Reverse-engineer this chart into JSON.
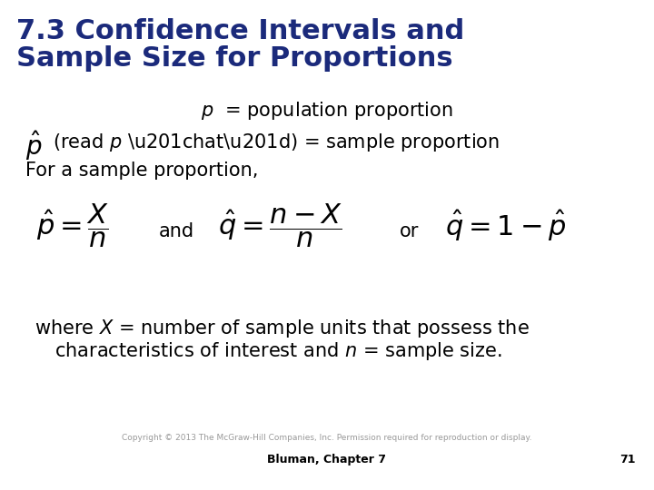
{
  "title_line1": "7.3 Confidence Intervals and",
  "title_line2": "Sample Size for Proportions",
  "title_color": "#1B2A7B",
  "title_fontsize": 22,
  "body_fontsize": 15,
  "formula_fontsize": 22,
  "footer_text": "Bluman, Chapter 7",
  "page_number": "71",
  "copyright_text": "Copyright © 2013 The McGraw-Hill Companies, Inc. Permission required for reproduction or display.",
  "background_color": "#FFFFFF",
  "body_color": "#000000"
}
